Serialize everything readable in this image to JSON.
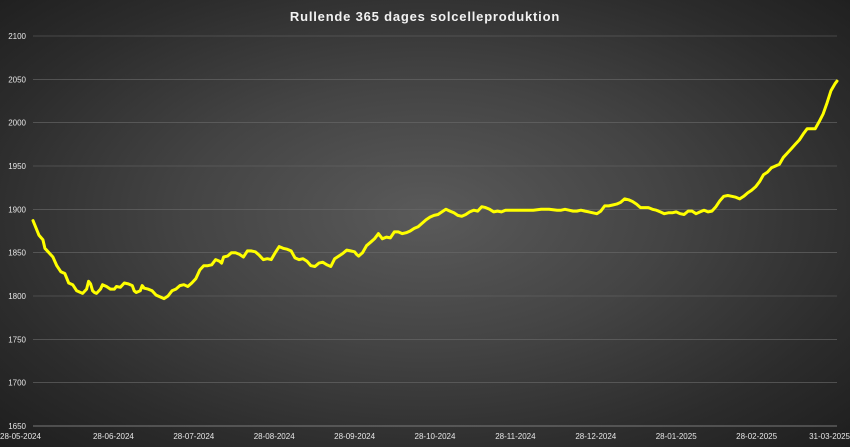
{
  "chart_data": {
    "type": "line",
    "title": "Rullende 365 dages solcelleproduktion",
    "xlabel": "",
    "ylabel": "",
    "ylim": [
      1650,
      2100
    ],
    "yticks": [
      1650,
      1700,
      1750,
      1800,
      1850,
      1900,
      1950,
      2000,
      2050,
      2100
    ],
    "xticks": [
      "28-05-2024",
      "28-06-2024",
      "28-07-2024",
      "28-08-2024",
      "28-09-2024",
      "28-10-2024",
      "28-11-2024",
      "28-12-2024",
      "28-01-2025",
      "28-02-2025",
      "31-03-2025"
    ],
    "grid": true,
    "legend": "none",
    "series": [
      {
        "color": "#ffff00",
        "points": [
          [
            0,
            1887
          ],
          [
            3,
            1870
          ],
          [
            5,
            1865
          ],
          [
            6,
            1855
          ],
          [
            10,
            1845
          ],
          [
            12,
            1835
          ],
          [
            14,
            1828
          ],
          [
            16,
            1826
          ],
          [
            18,
            1815
          ],
          [
            20,
            1813
          ],
          [
            22,
            1806
          ],
          [
            24,
            1804
          ],
          [
            25,
            1803
          ],
          [
            27,
            1808
          ],
          [
            28,
            1817
          ],
          [
            29,
            1814
          ],
          [
            30,
            1806
          ],
          [
            31,
            1804
          ],
          [
            32,
            1803
          ],
          [
            34,
            1808
          ],
          [
            35,
            1813
          ],
          [
            37,
            1811
          ],
          [
            39,
            1808
          ],
          [
            41,
            1808
          ],
          [
            42,
            1811
          ],
          [
            44,
            1810
          ],
          [
            46,
            1815
          ],
          [
            48,
            1814
          ],
          [
            50,
            1812
          ],
          [
            51,
            1806
          ],
          [
            52,
            1804
          ],
          [
            54,
            1806
          ],
          [
            55,
            1812
          ],
          [
            56,
            1809
          ],
          [
            58,
            1808
          ],
          [
            60,
            1806
          ],
          [
            62,
            1801
          ],
          [
            64,
            1799
          ],
          [
            66,
            1797
          ],
          [
            68,
            1800
          ],
          [
            70,
            1806
          ],
          [
            72,
            1808
          ],
          [
            74,
            1812
          ],
          [
            76,
            1813
          ],
          [
            78,
            1811
          ],
          [
            80,
            1815
          ],
          [
            82,
            1820
          ],
          [
            84,
            1830
          ],
          [
            86,
            1835
          ],
          [
            88,
            1835
          ],
          [
            90,
            1836
          ],
          [
            92,
            1842
          ],
          [
            94,
            1840
          ],
          [
            95,
            1838
          ],
          [
            96,
            1845
          ],
          [
            98,
            1846
          ],
          [
            100,
            1850
          ],
          [
            102,
            1850
          ],
          [
            104,
            1848
          ],
          [
            106,
            1845
          ],
          [
            108,
            1852
          ],
          [
            110,
            1852
          ],
          [
            112,
            1851
          ],
          [
            114,
            1847
          ],
          [
            116,
            1842
          ],
          [
            118,
            1843
          ],
          [
            120,
            1842
          ],
          [
            122,
            1850
          ],
          [
            124,
            1857
          ],
          [
            126,
            1855
          ],
          [
            128,
            1854
          ],
          [
            130,
            1852
          ],
          [
            132,
            1844
          ],
          [
            134,
            1842
          ],
          [
            136,
            1843
          ],
          [
            138,
            1840
          ],
          [
            140,
            1835
          ],
          [
            142,
            1834
          ],
          [
            144,
            1838
          ],
          [
            146,
            1839
          ],
          [
            148,
            1836
          ],
          [
            150,
            1834
          ],
          [
            152,
            1843
          ],
          [
            154,
            1846
          ],
          [
            156,
            1849
          ],
          [
            158,
            1853
          ],
          [
            160,
            1852
          ],
          [
            162,
            1851
          ],
          [
            163,
            1848
          ],
          [
            164,
            1846
          ],
          [
            166,
            1850
          ],
          [
            168,
            1858
          ],
          [
            170,
            1862
          ],
          [
            172,
            1866
          ],
          [
            174,
            1872
          ],
          [
            176,
            1866
          ],
          [
            178,
            1868
          ],
          [
            180,
            1867
          ],
          [
            182,
            1874
          ],
          [
            184,
            1874
          ],
          [
            186,
            1872
          ],
          [
            188,
            1873
          ],
          [
            190,
            1875
          ],
          [
            192,
            1878
          ],
          [
            194,
            1880
          ],
          [
            196,
            1884
          ],
          [
            198,
            1888
          ],
          [
            200,
            1891
          ],
          [
            202,
            1893
          ],
          [
            204,
            1894
          ],
          [
            206,
            1897
          ],
          [
            208,
            1900
          ],
          [
            210,
            1898
          ],
          [
            212,
            1896
          ],
          [
            214,
            1893
          ],
          [
            216,
            1892
          ],
          [
            218,
            1894
          ],
          [
            220,
            1897
          ],
          [
            222,
            1899
          ],
          [
            224,
            1898
          ],
          [
            226,
            1903
          ],
          [
            228,
            1902
          ],
          [
            230,
            1900
          ],
          [
            232,
            1897
          ],
          [
            234,
            1898
          ],
          [
            236,
            1897
          ],
          [
            238,
            1899
          ],
          [
            240,
            1899
          ],
          [
            244,
            1899
          ],
          [
            248,
            1899
          ],
          [
            252,
            1899
          ],
          [
            256,
            1900
          ],
          [
            260,
            1900
          ],
          [
            264,
            1899
          ],
          [
            266,
            1899
          ],
          [
            268,
            1900
          ],
          [
            270,
            1899
          ],
          [
            272,
            1898
          ],
          [
            274,
            1898
          ],
          [
            276,
            1899
          ],
          [
            278,
            1898
          ],
          [
            280,
            1897
          ],
          [
            282,
            1896
          ],
          [
            284,
            1895
          ],
          [
            286,
            1898
          ],
          [
            288,
            1904
          ],
          [
            290,
            1904
          ],
          [
            292,
            1905
          ],
          [
            294,
            1906
          ],
          [
            296,
            1908
          ],
          [
            298,
            1912
          ],
          [
            300,
            1911
          ],
          [
            302,
            1909
          ],
          [
            304,
            1906
          ],
          [
            306,
            1902
          ],
          [
            308,
            1902
          ],
          [
            310,
            1902
          ],
          [
            312,
            1900
          ],
          [
            314,
            1899
          ],
          [
            316,
            1897
          ],
          [
            318,
            1895
          ],
          [
            320,
            1896
          ],
          [
            322,
            1896
          ],
          [
            324,
            1897
          ],
          [
            326,
            1895
          ],
          [
            328,
            1894
          ],
          [
            330,
            1898
          ],
          [
            332,
            1898
          ],
          [
            334,
            1895
          ],
          [
            336,
            1897
          ],
          [
            338,
            1899
          ],
          [
            340,
            1897
          ],
          [
            342,
            1898
          ],
          [
            344,
            1903
          ],
          [
            346,
            1910
          ],
          [
            348,
            1915
          ],
          [
            350,
            1916
          ],
          [
            352,
            1915
          ],
          [
            354,
            1914
          ],
          [
            356,
            1912
          ],
          [
            358,
            1915
          ],
          [
            360,
            1919
          ],
          [
            362,
            1922
          ],
          [
            364,
            1926
          ],
          [
            366,
            1932
          ],
          [
            368,
            1940
          ],
          [
            370,
            1943
          ],
          [
            372,
            1948
          ],
          [
            374,
            1950
          ],
          [
            376,
            1952
          ],
          [
            378,
            1960
          ],
          [
            380,
            1965
          ],
          [
            382,
            1970
          ],
          [
            384,
            1975
          ],
          [
            386,
            1980
          ],
          [
            388,
            1987
          ],
          [
            390,
            1993
          ],
          [
            392,
            1993
          ],
          [
            394,
            1993
          ],
          [
            396,
            2001
          ],
          [
            398,
            2010
          ],
          [
            400,
            2023
          ],
          [
            402,
            2037
          ],
          [
            404,
            2045
          ],
          [
            405,
            2048
          ]
        ]
      }
    ]
  }
}
